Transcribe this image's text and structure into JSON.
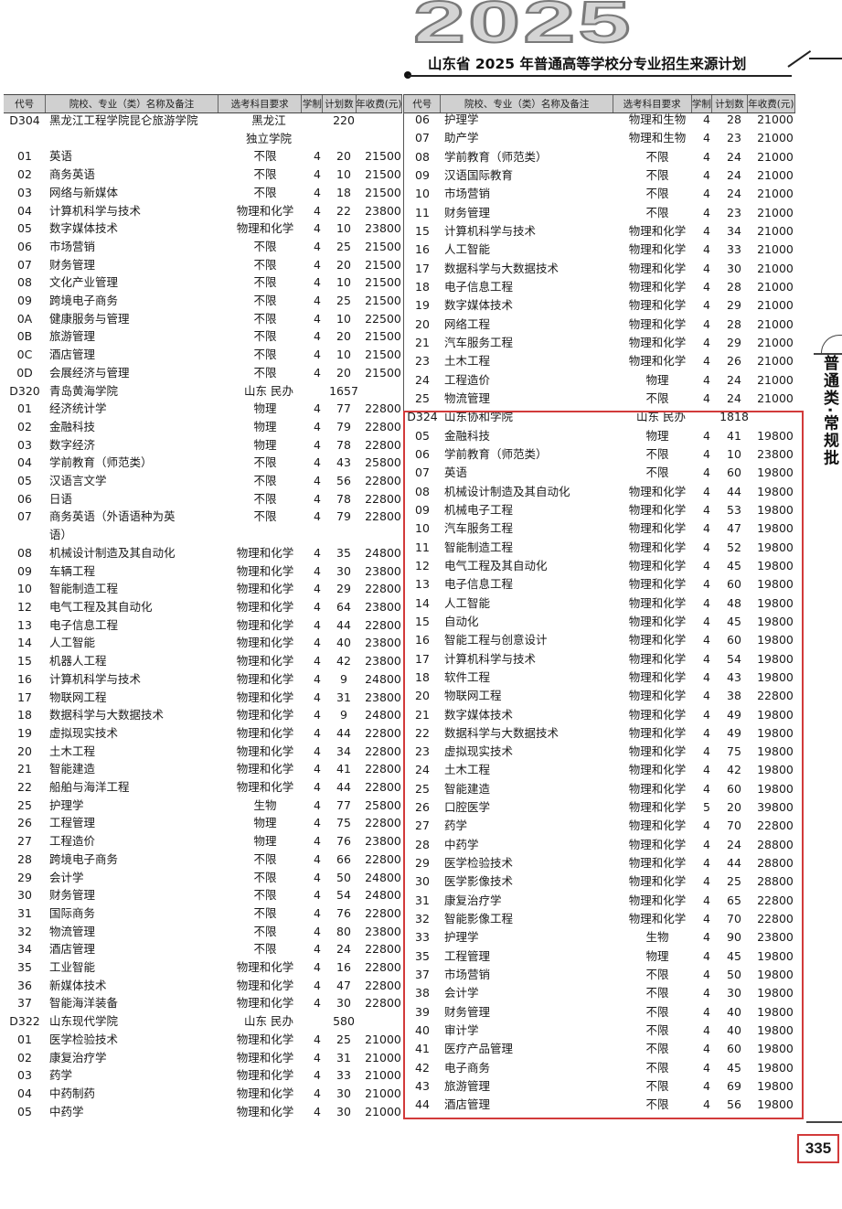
{
  "header": {
    "year": "2025",
    "title": "山东省 2025 年普通高等学校分专业招生来源计划"
  },
  "columns": [
    "代号",
    "院校、专业（类）名称及备注",
    "选考科目要求",
    "学制",
    "计划数",
    "年收费(元)"
  ],
  "left": {
    "rows": [
      [
        "D304",
        "黑龙江工程学院昆仑旅游学院",
        "黑龙江\n独立学院",
        "",
        "220",
        ""
      ],
      [
        "01",
        "英语",
        "不限",
        "4",
        "20",
        "21500"
      ],
      [
        "02",
        "商务英语",
        "不限",
        "4",
        "10",
        "21500"
      ],
      [
        "03",
        "网络与新媒体",
        "不限",
        "4",
        "18",
        "21500"
      ],
      [
        "04",
        "计算机科学与技术",
        "物理和化学",
        "4",
        "22",
        "23800"
      ],
      [
        "05",
        "数字媒体技术",
        "物理和化学",
        "4",
        "10",
        "23800"
      ],
      [
        "06",
        "市场营销",
        "不限",
        "4",
        "25",
        "21500"
      ],
      [
        "07",
        "财务管理",
        "不限",
        "4",
        "20",
        "21500"
      ],
      [
        "08",
        "文化产业管理",
        "不限",
        "4",
        "10",
        "21500"
      ],
      [
        "09",
        "跨境电子商务",
        "不限",
        "4",
        "25",
        "21500"
      ],
      [
        "0A",
        "健康服务与管理",
        "不限",
        "4",
        "10",
        "22500"
      ],
      [
        "0B",
        "旅游管理",
        "不限",
        "4",
        "20",
        "21500"
      ],
      [
        "0C",
        "酒店管理",
        "不限",
        "4",
        "10",
        "21500"
      ],
      [
        "0D",
        "会展经济与管理",
        "不限",
        "4",
        "20",
        "21500"
      ],
      [
        "D320",
        "青岛黄海学院",
        "山东 民办",
        "",
        "1657",
        ""
      ],
      [
        "01",
        "经济统计学",
        "物理",
        "4",
        "77",
        "22800"
      ],
      [
        "02",
        "金融科技",
        "物理",
        "4",
        "79",
        "22800"
      ],
      [
        "03",
        "数字经济",
        "物理",
        "4",
        "78",
        "22800"
      ],
      [
        "04",
        "学前教育（师范类）",
        "不限",
        "4",
        "43",
        "25800"
      ],
      [
        "05",
        "汉语言文学",
        "不限",
        "4",
        "56",
        "22800"
      ],
      [
        "06",
        "日语",
        "不限",
        "4",
        "78",
        "22800"
      ],
      [
        "07",
        "商务英语（外语语种为英\n语）",
        "不限",
        "4",
        "79",
        "22800"
      ],
      [
        "08",
        "机械设计制造及其自动化",
        "物理和化学",
        "4",
        "35",
        "24800"
      ],
      [
        "09",
        "车辆工程",
        "物理和化学",
        "4",
        "30",
        "23800"
      ],
      [
        "10",
        "智能制造工程",
        "物理和化学",
        "4",
        "29",
        "22800"
      ],
      [
        "12",
        "电气工程及其自动化",
        "物理和化学",
        "4",
        "64",
        "23800"
      ],
      [
        "13",
        "电子信息工程",
        "物理和化学",
        "4",
        "44",
        "22800"
      ],
      [
        "14",
        "人工智能",
        "物理和化学",
        "4",
        "40",
        "23800"
      ],
      [
        "15",
        "机器人工程",
        "物理和化学",
        "4",
        "42",
        "23800"
      ],
      [
        "16",
        "计算机科学与技术",
        "物理和化学",
        "4",
        "9",
        "24800"
      ],
      [
        "17",
        "物联网工程",
        "物理和化学",
        "4",
        "31",
        "23800"
      ],
      [
        "18",
        "数据科学与大数据技术",
        "物理和化学",
        "4",
        "9",
        "24800"
      ],
      [
        "19",
        "虚拟现实技术",
        "物理和化学",
        "4",
        "44",
        "22800"
      ],
      [
        "20",
        "土木工程",
        "物理和化学",
        "4",
        "34",
        "22800"
      ],
      [
        "21",
        "智能建造",
        "物理和化学",
        "4",
        "41",
        "22800"
      ],
      [
        "22",
        "船舶与海洋工程",
        "物理和化学",
        "4",
        "44",
        "22800"
      ],
      [
        "25",
        "护理学",
        "生物",
        "4",
        "77",
        "25800"
      ],
      [
        "26",
        "工程管理",
        "物理",
        "4",
        "75",
        "22800"
      ],
      [
        "27",
        "工程造价",
        "物理",
        "4",
        "76",
        "23800"
      ],
      [
        "28",
        "跨境电子商务",
        "不限",
        "4",
        "66",
        "22800"
      ],
      [
        "29",
        "会计学",
        "不限",
        "4",
        "50",
        "24800"
      ],
      [
        "30",
        "财务管理",
        "不限",
        "4",
        "54",
        "24800"
      ],
      [
        "31",
        "国际商务",
        "不限",
        "4",
        "76",
        "22800"
      ],
      [
        "32",
        "物流管理",
        "不限",
        "4",
        "80",
        "23800"
      ],
      [
        "34",
        "酒店管理",
        "不限",
        "4",
        "24",
        "22800"
      ],
      [
        "35",
        "工业智能",
        "物理和化学",
        "4",
        "16",
        "22800"
      ],
      [
        "36",
        "新媒体技术",
        "物理和化学",
        "4",
        "47",
        "22800"
      ],
      [
        "37",
        "智能海洋装备",
        "物理和化学",
        "4",
        "30",
        "22800"
      ],
      [
        "D322",
        "山东现代学院",
        "山东 民办",
        "",
        "580",
        ""
      ],
      [
        "01",
        "医学检验技术",
        "物理和化学",
        "4",
        "25",
        "21000"
      ],
      [
        "02",
        "康复治疗学",
        "物理和化学",
        "4",
        "31",
        "21000"
      ],
      [
        "03",
        "药学",
        "物理和化学",
        "4",
        "33",
        "21000"
      ],
      [
        "04",
        "中药制药",
        "物理和化学",
        "4",
        "30",
        "21000"
      ],
      [
        "05",
        "中药学",
        "物理和化学",
        "4",
        "30",
        "21000"
      ]
    ]
  },
  "right": {
    "rows": [
      [
        "06",
        "护理学",
        "物理和生物",
        "4",
        "28",
        "21000"
      ],
      [
        "07",
        "助产学",
        "物理和生物",
        "4",
        "23",
        "21000"
      ],
      [
        "08",
        "学前教育（师范类）",
        "不限",
        "4",
        "24",
        "21000"
      ],
      [
        "09",
        "汉语国际教育",
        "不限",
        "4",
        "24",
        "21000"
      ],
      [
        "10",
        "市场营销",
        "不限",
        "4",
        "24",
        "21000"
      ],
      [
        "11",
        "财务管理",
        "不限",
        "4",
        "23",
        "21000"
      ],
      [
        "15",
        "计算机科学与技术",
        "物理和化学",
        "4",
        "34",
        "21000"
      ],
      [
        "16",
        "人工智能",
        "物理和化学",
        "4",
        "33",
        "21000"
      ],
      [
        "17",
        "数据科学与大数据技术",
        "物理和化学",
        "4",
        "30",
        "21000"
      ],
      [
        "18",
        "电子信息工程",
        "物理和化学",
        "4",
        "28",
        "21000"
      ],
      [
        "19",
        "数字媒体技术",
        "物理和化学",
        "4",
        "29",
        "21000"
      ],
      [
        "20",
        "网络工程",
        "物理和化学",
        "4",
        "28",
        "21000"
      ],
      [
        "21",
        "汽车服务工程",
        "物理和化学",
        "4",
        "29",
        "21000"
      ],
      [
        "23",
        "土木工程",
        "物理和化学",
        "4",
        "26",
        "21000"
      ],
      [
        "24",
        "工程造价",
        "物理",
        "4",
        "24",
        "21000"
      ],
      [
        "25",
        "物流管理",
        "不限",
        "4",
        "24",
        "21000"
      ],
      [
        "D324",
        "山东协和学院",
        "山东 民办",
        "",
        "1818",
        ""
      ],
      [
        "05",
        "金融科技",
        "物理",
        "4",
        "41",
        "19800"
      ],
      [
        "06",
        "学前教育（师范类）",
        "不限",
        "4",
        "10",
        "23800"
      ],
      [
        "07",
        "英语",
        "不限",
        "4",
        "60",
        "19800"
      ],
      [
        "08",
        "机械设计制造及其自动化",
        "物理和化学",
        "4",
        "44",
        "19800"
      ],
      [
        "09",
        "机械电子工程",
        "物理和化学",
        "4",
        "53",
        "19800"
      ],
      [
        "10",
        "汽车服务工程",
        "物理和化学",
        "4",
        "47",
        "19800"
      ],
      [
        "11",
        "智能制造工程",
        "物理和化学",
        "4",
        "52",
        "19800"
      ],
      [
        "12",
        "电气工程及其自动化",
        "物理和化学",
        "4",
        "45",
        "19800"
      ],
      [
        "13",
        "电子信息工程",
        "物理和化学",
        "4",
        "60",
        "19800"
      ],
      [
        "14",
        "人工智能",
        "物理和化学",
        "4",
        "48",
        "19800"
      ],
      [
        "15",
        "自动化",
        "物理和化学",
        "4",
        "45",
        "19800"
      ],
      [
        "16",
        "智能工程与创意设计",
        "物理和化学",
        "4",
        "60",
        "19800"
      ],
      [
        "17",
        "计算机科学与技术",
        "物理和化学",
        "4",
        "54",
        "19800"
      ],
      [
        "18",
        "软件工程",
        "物理和化学",
        "4",
        "43",
        "19800"
      ],
      [
        "20",
        "物联网工程",
        "物理和化学",
        "4",
        "38",
        "22800"
      ],
      [
        "21",
        "数字媒体技术",
        "物理和化学",
        "4",
        "49",
        "19800"
      ],
      [
        "22",
        "数据科学与大数据技术",
        "物理和化学",
        "4",
        "49",
        "19800"
      ],
      [
        "23",
        "虚拟现实技术",
        "物理和化学",
        "4",
        "75",
        "19800"
      ],
      [
        "24",
        "土木工程",
        "物理和化学",
        "4",
        "42",
        "19800"
      ],
      [
        "25",
        "智能建造",
        "物理和化学",
        "4",
        "60",
        "19800"
      ],
      [
        "26",
        "口腔医学",
        "物理和化学",
        "5",
        "20",
        "39800"
      ],
      [
        "27",
        "药学",
        "物理和化学",
        "4",
        "70",
        "22800"
      ],
      [
        "28",
        "中药学",
        "物理和化学",
        "4",
        "24",
        "28800"
      ],
      [
        "29",
        "医学检验技术",
        "物理和化学",
        "4",
        "44",
        "28800"
      ],
      [
        "30",
        "医学影像技术",
        "物理和化学",
        "4",
        "25",
        "28800"
      ],
      [
        "31",
        "康复治疗学",
        "物理和化学",
        "4",
        "65",
        "22800"
      ],
      [
        "32",
        "智能影像工程",
        "物理和化学",
        "4",
        "70",
        "22800"
      ],
      [
        "33",
        "护理学",
        "生物",
        "4",
        "90",
        "23800"
      ],
      [
        "35",
        "工程管理",
        "物理",
        "4",
        "45",
        "19800"
      ],
      [
        "37",
        "市场营销",
        "不限",
        "4",
        "50",
        "19800"
      ],
      [
        "38",
        "会计学",
        "不限",
        "4",
        "30",
        "19800"
      ],
      [
        "39",
        "财务管理",
        "不限",
        "4",
        "40",
        "19800"
      ],
      [
        "40",
        "审计学",
        "不限",
        "4",
        "40",
        "19800"
      ],
      [
        "41",
        "医疗产品管理",
        "不限",
        "4",
        "60",
        "19800"
      ],
      [
        "42",
        "电子商务",
        "不限",
        "4",
        "45",
        "19800"
      ],
      [
        "43",
        "旅游管理",
        "不限",
        "4",
        "69",
        "19800"
      ],
      [
        "44",
        "酒店管理",
        "不限",
        "4",
        "56",
        "19800"
      ]
    ]
  },
  "side_tab": "普通类·常规批",
  "page_number": "335",
  "colors": {
    "highlight_border": "#d23a3a",
    "header_bg": "#d0d0d0"
  }
}
